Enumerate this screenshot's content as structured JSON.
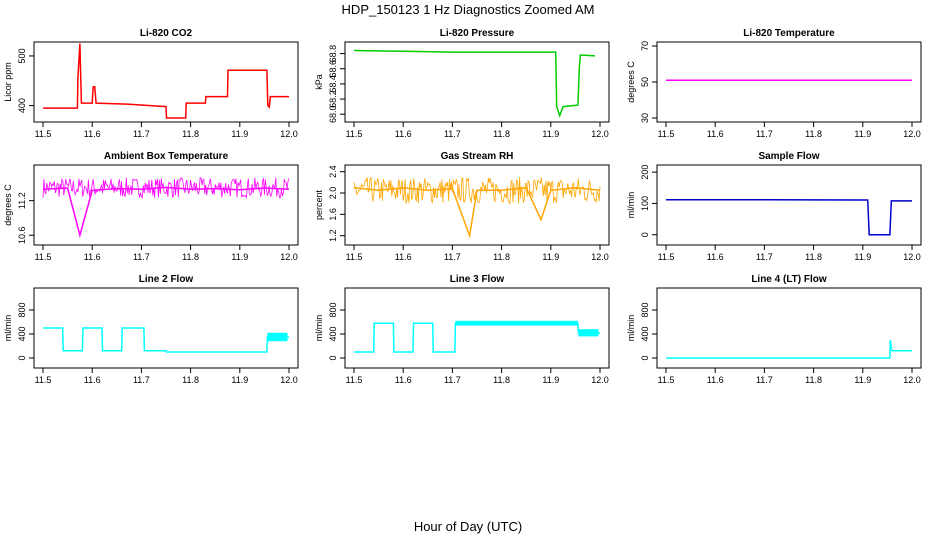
{
  "figure": {
    "title": "HDP_150123  1 Hz Diagnostics Zoomed AM",
    "xlabel": "Hour of Day (UTC)"
  },
  "chart_data": [
    {
      "type": "line",
      "title": "Li-820 CO2",
      "ylabel": "Licor ppm",
      "color": "#ff0000",
      "xlim": [
        11.5,
        12.0
      ],
      "ylim": [
        375,
        520
      ],
      "xticks": [
        11.5,
        11.6,
        11.7,
        11.8,
        11.9,
        12.0
      ],
      "yticks": [
        400,
        500
      ],
      "series": [
        {
          "x": [
            11.5,
            11.57,
            11.571,
            11.575,
            11.578,
            11.6,
            11.602,
            11.605,
            11.608,
            11.67,
            11.75,
            11.751,
            11.79,
            11.791,
            11.83,
            11.831,
            11.875,
            11.876,
            11.955,
            11.957,
            11.96,
            11.962,
            12.0
          ],
          "y": [
            395,
            395,
            455,
            525,
            405,
            405,
            438,
            438,
            405,
            403,
            398,
            375,
            375,
            405,
            405,
            418,
            418,
            471,
            471,
            400,
            397,
            418,
            418
          ]
        }
      ]
    },
    {
      "type": "line",
      "title": "Li-820 Pressure",
      "ylabel": "kPa",
      "color": "#00cc00",
      "xlim": [
        11.5,
        12.0
      ],
      "ylim": [
        67.95,
        68.9
      ],
      "xticks": [
        11.5,
        11.6,
        11.7,
        11.8,
        11.9,
        12.0
      ],
      "yticks": [
        68.0,
        68.2,
        68.4,
        68.6,
        68.8
      ],
      "series": [
        {
          "x": [
            11.5,
            11.6,
            11.7,
            11.8,
            11.9,
            11.91,
            11.912,
            11.918,
            11.925,
            11.955,
            11.958,
            11.96,
            11.965,
            11.99
          ],
          "y": [
            68.84,
            68.83,
            68.82,
            68.82,
            68.82,
            68.82,
            68.1,
            67.98,
            68.1,
            68.12,
            68.6,
            68.78,
            68.78,
            68.77
          ]
        }
      ]
    },
    {
      "type": "line",
      "title": "Li-820 Temperature",
      "ylabel": "degrees C",
      "color": "#ff00ff",
      "xlim": [
        11.5,
        12.0
      ],
      "ylim": [
        30,
        70
      ],
      "xticks": [
        11.5,
        11.6,
        11.7,
        11.8,
        11.9,
        12.0
      ],
      "yticks": [
        30,
        50,
        70
      ],
      "series": [
        {
          "x": [
            11.5,
            12.0
          ],
          "y": [
            51,
            51
          ]
        }
      ]
    },
    {
      "type": "line",
      "title": "Ambient Box Temperature",
      "ylabel": "degrees C",
      "color": "#ff00ff",
      "xlim": [
        11.5,
        12.0
      ],
      "ylim": [
        10.5,
        11.75
      ],
      "xticks": [
        11.5,
        11.6,
        11.7,
        11.8,
        11.9,
        12.0
      ],
      "yticks": [
        10.6,
        11.2
      ],
      "series": [
        {
          "x": [
            11.5,
            11.55,
            11.575,
            11.6,
            11.65,
            11.7,
            11.75,
            11.8,
            11.85,
            11.9,
            11.95,
            12.0
          ],
          "y": [
            11.4,
            11.42,
            10.6,
            11.38,
            11.41,
            11.4,
            11.43,
            11.4,
            11.41,
            11.39,
            11.42,
            11.4
          ]
        }
      ]
    },
    {
      "type": "line",
      "title": "Gas Stream RH",
      "ylabel": "percent",
      "color": "#ffa500",
      "xlim": [
        11.5,
        12.0
      ],
      "ylim": [
        1.1,
        2.45
      ],
      "xticks": [
        11.5,
        11.6,
        11.7,
        11.8,
        11.9,
        12.0
      ],
      "yticks": [
        1.2,
        1.6,
        2.0,
        2.4
      ],
      "series": [
        {
          "x": [
            11.5,
            11.55,
            11.6,
            11.65,
            11.7,
            11.735,
            11.75,
            11.8,
            11.85,
            11.88,
            11.9,
            11.95,
            12.0
          ],
          "y": [
            2.1,
            2.05,
            2.1,
            2.05,
            2.08,
            1.2,
            2.05,
            2.05,
            2.1,
            1.5,
            2.05,
            2.1,
            2.05
          ]
        }
      ]
    },
    {
      "type": "line",
      "title": "Sample Flow",
      "ylabel": "ml/min",
      "color": "#0000cc",
      "xlim": [
        11.5,
        12.0
      ],
      "ylim": [
        -20,
        210
      ],
      "xticks": [
        11.5,
        11.6,
        11.7,
        11.8,
        11.9,
        12.0
      ],
      "yticks": [
        0,
        100,
        200
      ],
      "series": [
        {
          "x": [
            11.5,
            11.7,
            11.9,
            11.91,
            11.913,
            11.955,
            11.958,
            12.0
          ],
          "y": [
            112,
            112,
            111,
            111,
            0,
            0,
            108,
            108
          ]
        }
      ]
    },
    {
      "type": "line",
      "title": "Line 2 Flow",
      "ylabel": "ml/min",
      "color": "#00ffff",
      "xlim": [
        11.5,
        12.0
      ],
      "ylim": [
        -100,
        1100
      ],
      "xticks": [
        11.5,
        11.6,
        11.7,
        11.8,
        11.9,
        12.0
      ],
      "yticks": [
        0,
        400,
        800
      ],
      "series": [
        {
          "x": [
            11.5,
            11.54,
            11.541,
            11.58,
            11.581,
            11.62,
            11.621,
            11.66,
            11.661,
            11.705,
            11.706,
            11.75,
            11.751,
            11.955,
            11.956,
            12.0
          ],
          "y": [
            500,
            500,
            120,
            120,
            500,
            500,
            120,
            120,
            500,
            500,
            120,
            120,
            100,
            100,
            350,
            350
          ]
        }
      ]
    },
    {
      "type": "line",
      "title": "Line 3 Flow",
      "ylabel": "ml/min",
      "color": "#00ffff",
      "xlim": [
        11.5,
        12.0
      ],
      "ylim": [
        -100,
        1100
      ],
      "xticks": [
        11.5,
        11.6,
        11.7,
        11.8,
        11.9,
        12.0
      ],
      "yticks": [
        0,
        400,
        800
      ],
      "series": [
        {
          "x": [
            11.5,
            11.54,
            11.541,
            11.58,
            11.581,
            11.62,
            11.621,
            11.66,
            11.661,
            11.705,
            11.706,
            11.955,
            11.956,
            12.0
          ],
          "y": [
            100,
            100,
            580,
            580,
            100,
            100,
            580,
            580,
            100,
            100,
            580,
            580,
            420,
            420
          ]
        }
      ]
    },
    {
      "type": "line",
      "title": "Line 4 (LT) Flow",
      "ylabel": "ml/min",
      "color": "#00ffff",
      "xlim": [
        11.5,
        12.0
      ],
      "ylim": [
        -100,
        1100
      ],
      "xticks": [
        11.5,
        11.6,
        11.7,
        11.8,
        11.9,
        12.0
      ],
      "yticks": [
        0,
        400,
        800
      ],
      "series": [
        {
          "x": [
            11.5,
            11.955,
            11.956,
            11.958,
            11.96,
            12.0
          ],
          "y": [
            0,
            0,
            300,
            150,
            120,
            120
          ]
        }
      ]
    }
  ]
}
